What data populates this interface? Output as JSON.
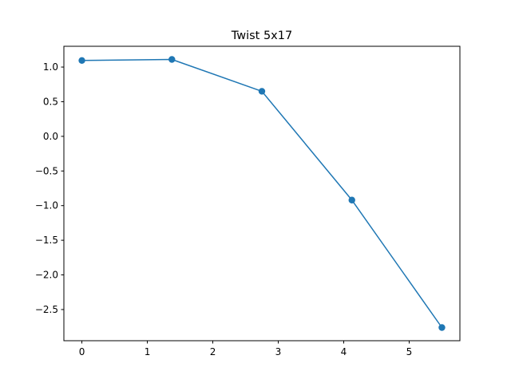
{
  "chart_data": {
    "type": "line",
    "title": "Twist 5x17",
    "xlabel": "",
    "ylabel": "",
    "xlim": [
      -0.275,
      5.775
    ],
    "ylim": [
      -2.95,
      1.3
    ],
    "x_ticks": [
      0,
      1,
      2,
      3,
      4,
      5
    ],
    "y_ticks": [
      1.0,
      0.5,
      0.0,
      -0.5,
      -1.0,
      -1.5,
      -2.0,
      -2.5
    ],
    "x_tick_labels": [
      "0",
      "1",
      "2",
      "3",
      "4",
      "5"
    ],
    "y_tick_labels": [
      "1.0",
      "0.5",
      "0.0",
      "−0.5",
      "−1.0",
      "−1.5",
      "−2.0",
      "−2.5"
    ],
    "grid": false,
    "series": [
      {
        "color": "#1f77b4",
        "marker": "circle",
        "x": [
          0.0,
          1.375,
          2.75,
          4.125,
          5.5
        ],
        "y": [
          1.095,
          1.11,
          0.65,
          -0.92,
          -2.76
        ]
      }
    ]
  }
}
